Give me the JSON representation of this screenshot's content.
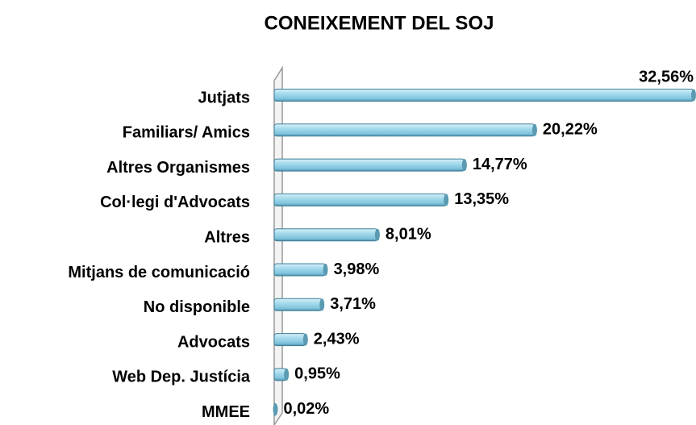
{
  "chart_data": {
    "type": "bar",
    "orientation": "horizontal",
    "title": "CONEIXEMENT DEL SOJ",
    "categories": [
      "Jutjats",
      "Familiars/ Amics",
      "Altres Organismes",
      "Col·legi d'Advocats",
      "Altres",
      "Mitjans de comunicació",
      "No disponible",
      "Advocats",
      "Web Dep. Justícia",
      "MMEE"
    ],
    "values": [
      32.56,
      20.22,
      14.77,
      13.35,
      8.01,
      3.98,
      3.71,
      2.43,
      0.95,
      0.02
    ],
    "value_labels": [
      "32,56%",
      "20,22%",
      "14,77%",
      "13,35%",
      "8,01%",
      "3,98%",
      "3,71%",
      "2,43%",
      "0,95%",
      "0,02%"
    ],
    "color": "#8fd0e6"
  }
}
